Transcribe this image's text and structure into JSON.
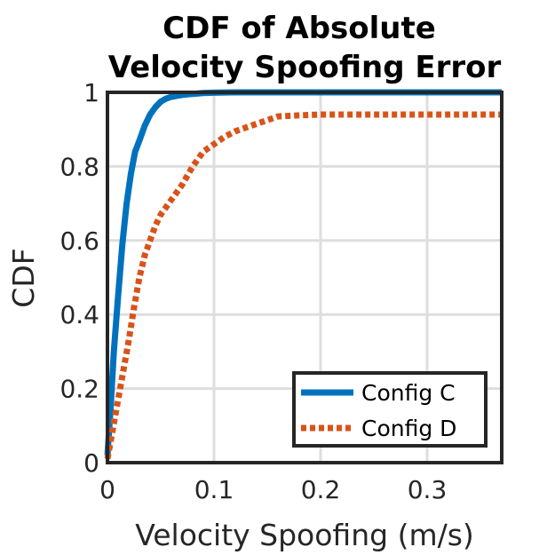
{
  "chart_data": {
    "type": "line",
    "title": [
      "CDF of Absolute",
      "Velocity Spoofing Error"
    ],
    "xlabel": "Velocity Spoofing (m/s)",
    "ylabel": "CDF",
    "xlim": [
      0,
      0.37
    ],
    "ylim": [
      0,
      1
    ],
    "xticks": [
      0,
      0.1,
      0.2,
      0.3
    ],
    "xtick_labels": [
      "0",
      "0.1",
      "0.2",
      "0.3"
    ],
    "yticks": [
      0,
      0.2,
      0.4,
      0.6,
      0.8,
      1
    ],
    "ytick_labels": [
      "0",
      "0.2",
      "0.4",
      "0.6",
      "0.8",
      "1"
    ],
    "grid": true,
    "legend_position": "bottom-right",
    "series": [
      {
        "name": "Config C",
        "color": "#0072BD",
        "style": "solid",
        "x": [
          0,
          0.003,
          0.006,
          0.01,
          0.014,
          0.018,
          0.022,
          0.026,
          0.03,
          0.035,
          0.04,
          0.045,
          0.05,
          0.055,
          0.06,
          0.07,
          0.08,
          0.09,
          0.1,
          0.12,
          0.15,
          0.2,
          0.3,
          0.37
        ],
        "y": [
          0.02,
          0.15,
          0.3,
          0.45,
          0.59,
          0.7,
          0.78,
          0.84,
          0.87,
          0.91,
          0.94,
          0.96,
          0.975,
          0.983,
          0.988,
          0.993,
          0.996,
          0.998,
          0.999,
          1,
          1,
          1,
          1,
          1
        ]
      },
      {
        "name": "Config D",
        "color": "#D95319",
        "style": "dotted",
        "x": [
          0,
          0.005,
          0.01,
          0.015,
          0.02,
          0.025,
          0.03,
          0.035,
          0.04,
          0.045,
          0.05,
          0.055,
          0.06,
          0.07,
          0.08,
          0.09,
          0.1,
          0.11,
          0.12,
          0.13,
          0.14,
          0.15,
          0.16,
          0.18,
          0.2,
          0.3,
          0.37
        ],
        "y": [
          0.01,
          0.09,
          0.17,
          0.25,
          0.33,
          0.42,
          0.5,
          0.56,
          0.6,
          0.64,
          0.67,
          0.69,
          0.71,
          0.75,
          0.8,
          0.84,
          0.86,
          0.88,
          0.895,
          0.905,
          0.915,
          0.925,
          0.935,
          0.938,
          0.94,
          0.94,
          0.94
        ]
      }
    ]
  }
}
